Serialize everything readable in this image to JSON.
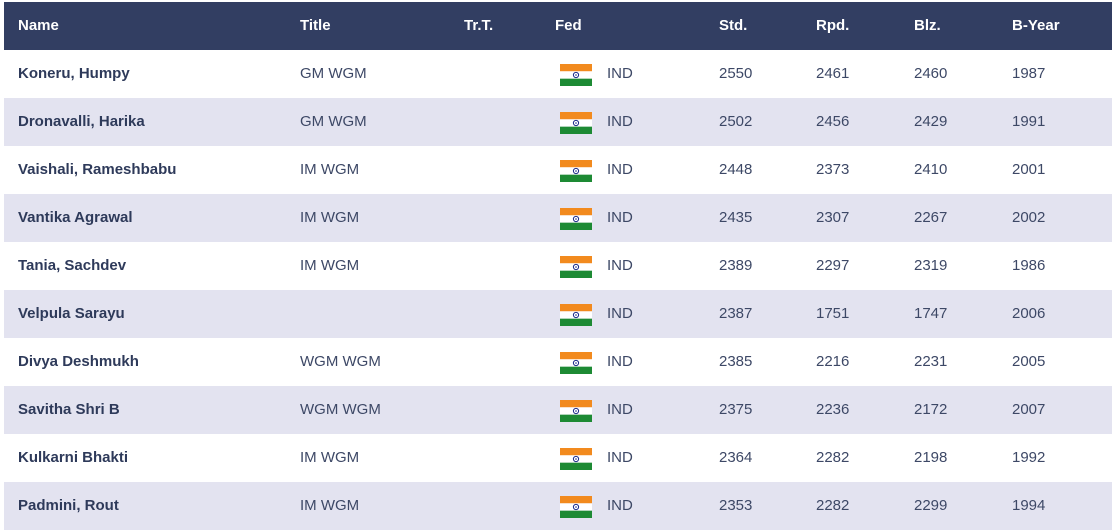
{
  "table": {
    "columns": [
      "Name",
      "Title",
      "Tr.T.",
      "Fed",
      "Std.",
      "Rpd.",
      "Blz.",
      "B-Year"
    ],
    "rows": [
      {
        "name": "Koneru, Humpy",
        "title": "GM WGM",
        "fed": "IND",
        "std": 2550,
        "rpd": 2461,
        "blz": 2460,
        "byear": 1987
      },
      {
        "name": "Dronavalli, Harika",
        "title": "GM WGM",
        "fed": "IND",
        "std": 2502,
        "rpd": 2456,
        "blz": 2429,
        "byear": 1991
      },
      {
        "name": "Vaishali, Rameshbabu",
        "title": "IM WGM",
        "fed": "IND",
        "std": 2448,
        "rpd": 2373,
        "blz": 2410,
        "byear": 2001
      },
      {
        "name": "Vantika Agrawal",
        "title": "IM WGM",
        "fed": "IND",
        "std": 2435,
        "rpd": 2307,
        "blz": 2267,
        "byear": 2002
      },
      {
        "name": "Tania, Sachdev",
        "title": "IM WGM",
        "fed": "IND",
        "std": 2389,
        "rpd": 2297,
        "blz": 2319,
        "byear": 1986
      },
      {
        "name": "Velpula Sarayu",
        "title": null,
        "fed": "IND",
        "std": 2387,
        "rpd": 1751,
        "blz": 1747,
        "byear": 2006
      },
      {
        "name": "Divya Deshmukh",
        "title": "WGM WGM",
        "fed": "IND",
        "std": 2385,
        "rpd": 2216,
        "blz": 2231,
        "byear": 2005
      },
      {
        "name": "Savitha Shri B",
        "title": "WGM WGM",
        "fed": "IND",
        "std": 2375,
        "rpd": 2236,
        "blz": 2172,
        "byear": 2007
      },
      {
        "name": "Kulkarni Bhakti",
        "title": "IM WGM",
        "fed": "IND",
        "std": 2364,
        "rpd": 2282,
        "blz": 2198,
        "byear": 1992
      },
      {
        "name": "Padmini, Rout",
        "title": "IM WGM",
        "fed": "IND",
        "std": 2353,
        "rpd": 2282,
        "blz": 2299,
        "byear": 1994
      }
    ]
  }
}
